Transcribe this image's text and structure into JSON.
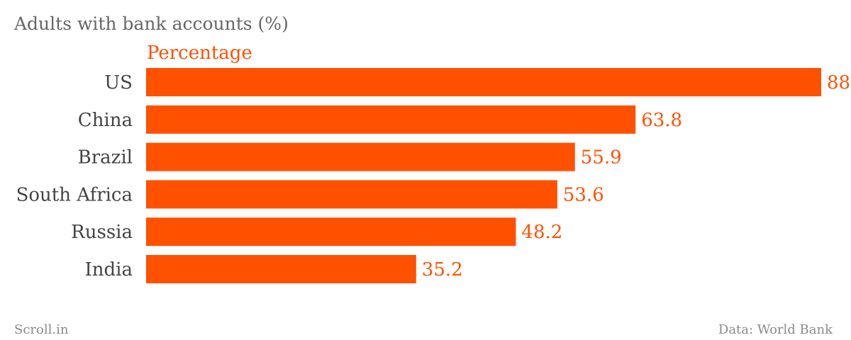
{
  "chart_data": {
    "type": "bar",
    "orientation": "horizontal",
    "title": "Adults with bank accounts (%)",
    "series": [
      {
        "name": "Percentage",
        "values": [
          88,
          63.8,
          55.9,
          53.6,
          48.2,
          35.2
        ]
      }
    ],
    "categories": [
      "US",
      "China",
      "Brazil",
      "South Africa",
      "Russia",
      "India"
    ],
    "xlim": [
      0,
      88
    ],
    "grid": false,
    "value_labels": [
      "88",
      "63.8",
      "55.9",
      "53.6",
      "48.2",
      "35.2"
    ],
    "colors": {
      "bar": "#ff5100",
      "value_label": "#ff5100",
      "category_label": "#444444",
      "title": "#666666",
      "footer": "#8a8a8a"
    }
  },
  "footer": {
    "source_left": "Scroll.in",
    "source_right": "Data: World Bank"
  }
}
